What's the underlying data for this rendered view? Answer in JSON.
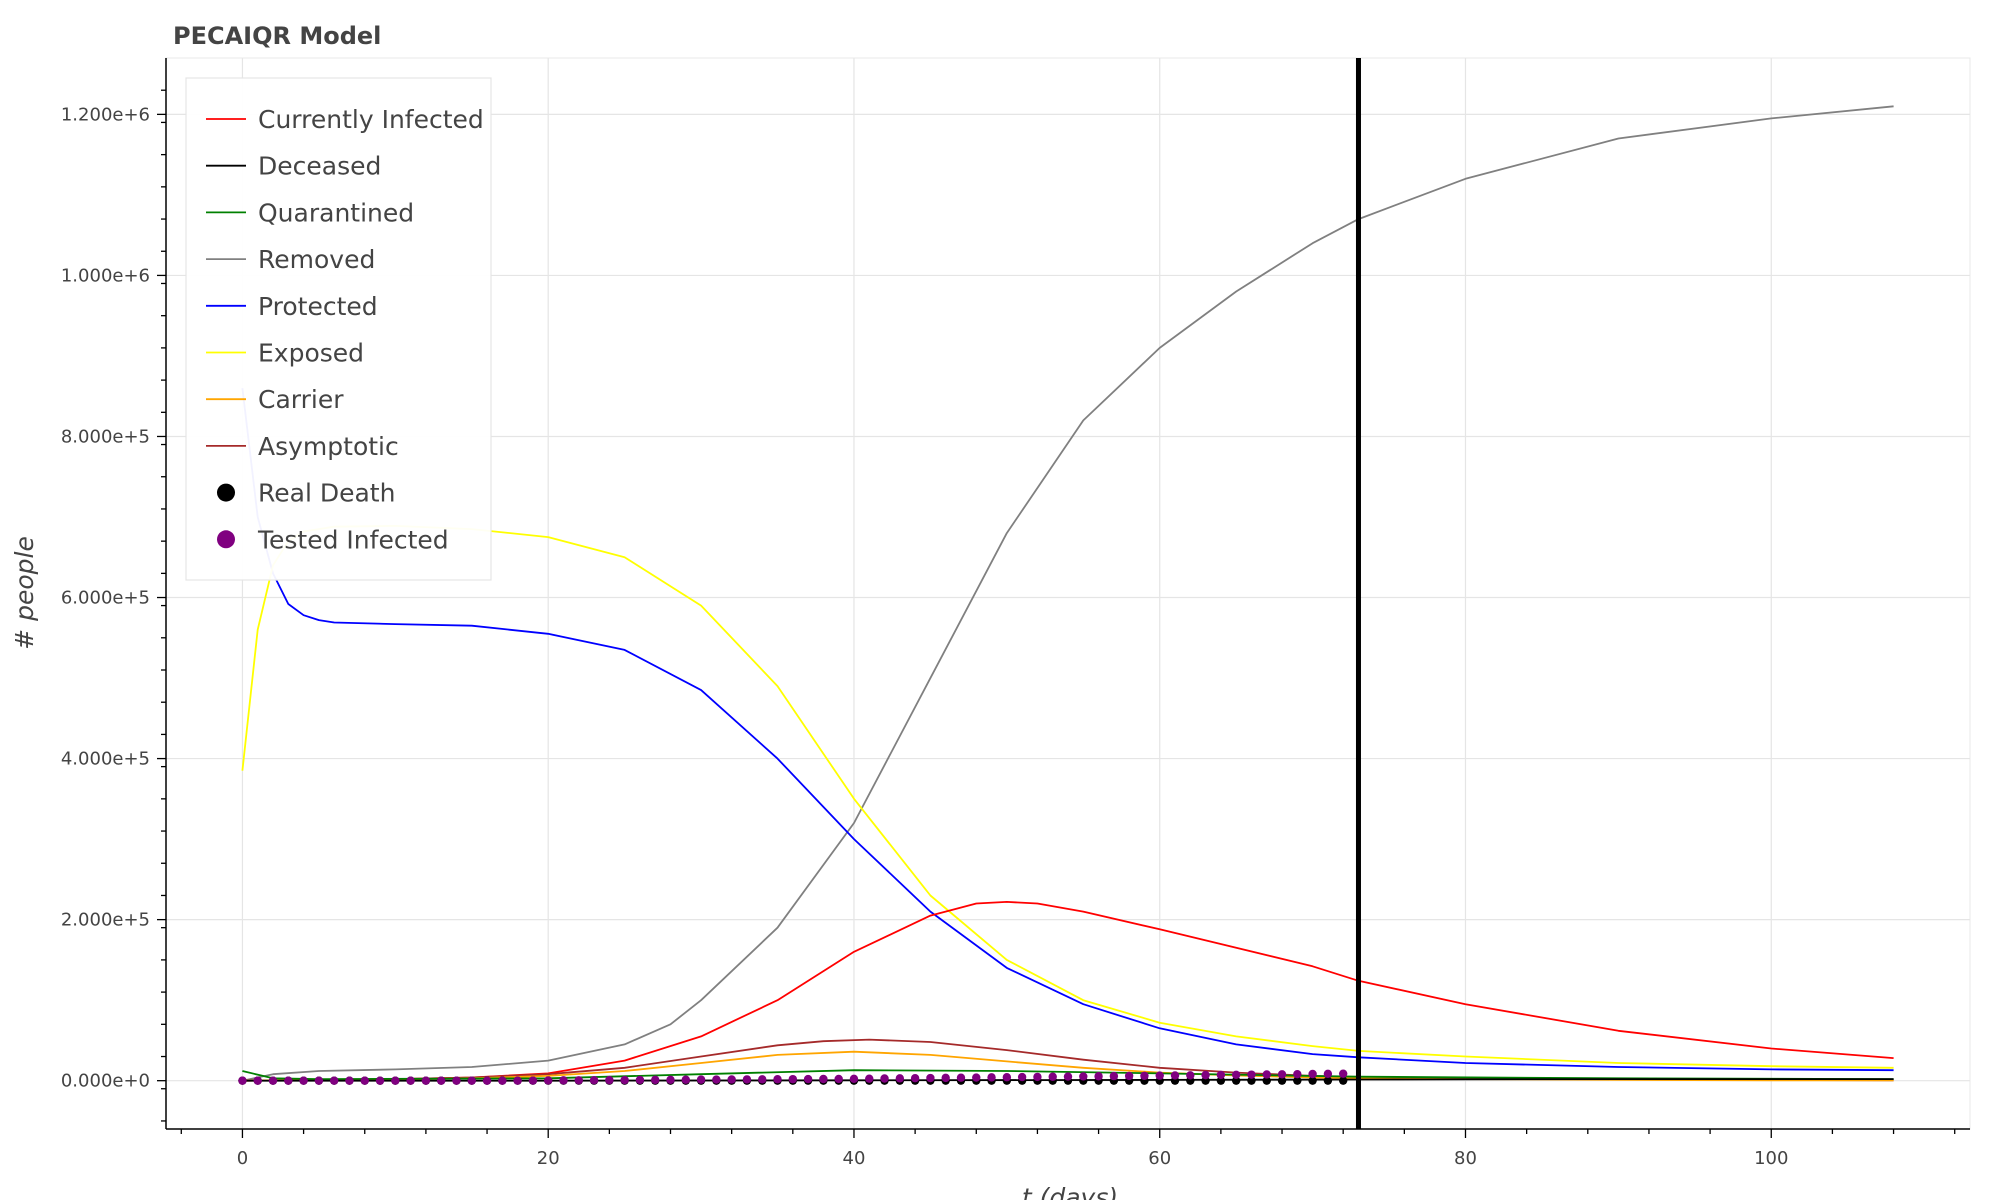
{
  "chart_data": {
    "type": "line",
    "title": "PECAIQR Model",
    "xlabel": "t (days)",
    "ylabel": "# people",
    "xlim": [
      -5,
      113
    ],
    "ylim": [
      -60000,
      1270000
    ],
    "x_major_ticks": [
      0,
      20,
      40,
      60,
      80,
      100
    ],
    "y_ticks": [
      0,
      200000,
      400000,
      600000,
      800000,
      1000000,
      1200000
    ],
    "y_tick_labels": [
      "0.000e+0",
      "2.000e+5",
      "4.000e+5",
      "6.000e+5",
      "8.000e+5",
      "1.000e+6",
      "1.200e+6"
    ],
    "grid": true,
    "legend_position": "top-left",
    "vertical_line": {
      "x": 73,
      "color": "#000000"
    },
    "series": [
      {
        "name": "Currently Infected",
        "color": "#ff0000",
        "kind": "line",
        "x": [
          0,
          5,
          10,
          15,
          20,
          25,
          30,
          35,
          40,
          45,
          48,
          50,
          52,
          55,
          60,
          65,
          70,
          73,
          80,
          90,
          100,
          108
        ],
        "y": [
          0,
          1000,
          2000,
          4000,
          9000,
          25000,
          55000,
          100000,
          160000,
          205000,
          220000,
          222000,
          220000,
          210000,
          188000,
          165000,
          142000,
          124000,
          95000,
          62000,
          40000,
          28000
        ]
      },
      {
        "name": "Deceased",
        "color": "#000000",
        "kind": "line",
        "x": [
          0,
          20,
          40,
          60,
          73,
          90,
          108
        ],
        "y": [
          0,
          0,
          500,
          1000,
          1500,
          2000,
          2000
        ]
      },
      {
        "name": "Quarantined",
        "color": "#008000",
        "kind": "line",
        "x": [
          0,
          2,
          5,
          20,
          30,
          40,
          50,
          60,
          73,
          90,
          108
        ],
        "y": [
          12000,
          3000,
          2000,
          3000,
          8000,
          13000,
          12000,
          9000,
          5000,
          3000,
          2000
        ]
      },
      {
        "name": "Removed",
        "color": "#808080",
        "kind": "line",
        "x": [
          0,
          2,
          5,
          10,
          15,
          20,
          25,
          28,
          30,
          35,
          40,
          45,
          50,
          55,
          60,
          65,
          70,
          73,
          80,
          90,
          100,
          108
        ],
        "y": [
          0,
          8000,
          12000,
          14000,
          17000,
          25000,
          45000,
          70000,
          100000,
          190000,
          320000,
          500000,
          680000,
          820000,
          910000,
          980000,
          1040000,
          1070000,
          1120000,
          1170000,
          1195000,
          1210000
        ]
      },
      {
        "name": "Protected",
        "color": "#0000ff",
        "kind": "line",
        "x": [
          0,
          1,
          2,
          3,
          4,
          5,
          6,
          10,
          15,
          20,
          25,
          30,
          35,
          40,
          45,
          50,
          55,
          60,
          65,
          70,
          73,
          80,
          90,
          100,
          108
        ],
        "y": [
          860000,
          700000,
          630000,
          592000,
          578000,
          572000,
          569000,
          567000,
          565000,
          555000,
          535000,
          485000,
          400000,
          300000,
          210000,
          140000,
          95000,
          65000,
          45000,
          33000,
          29000,
          22000,
          17000,
          14000,
          13000
        ]
      },
      {
        "name": "Exposed",
        "color": "#ffff00",
        "kind": "line",
        "x": [
          0,
          1,
          2,
          3,
          4,
          6,
          10,
          15,
          20,
          25,
          30,
          35,
          40,
          45,
          50,
          55,
          60,
          65,
          70,
          73,
          80,
          90,
          100,
          108
        ],
        "y": [
          385000,
          560000,
          640000,
          670000,
          682000,
          688000,
          689000,
          685000,
          675000,
          650000,
          590000,
          490000,
          350000,
          230000,
          150000,
          100000,
          72000,
          55000,
          43000,
          37000,
          30000,
          22000,
          18000,
          16000
        ]
      },
      {
        "name": "Carrier",
        "color": "#ffa500",
        "kind": "line",
        "x": [
          0,
          5,
          10,
          15,
          20,
          25,
          30,
          35,
          40,
          45,
          50,
          55,
          60,
          65,
          70,
          73,
          80,
          90,
          100,
          108
        ],
        "y": [
          0,
          1000,
          1500,
          3000,
          6000,
          12000,
          22000,
          32000,
          36000,
          32000,
          24000,
          16000,
          10000,
          6500,
          4000,
          3000,
          2000,
          1000,
          500,
          300
        ]
      },
      {
        "name": "Asymptotic",
        "color": "#a52a2a",
        "kind": "line",
        "x": [
          0,
          5,
          10,
          15,
          20,
          25,
          30,
          35,
          38,
          41,
          45,
          50,
          55,
          60,
          65,
          70,
          73,
          80,
          90,
          100,
          108
        ],
        "y": [
          0,
          1000,
          2000,
          4000,
          8000,
          16000,
          30000,
          44000,
          49000,
          51000,
          48000,
          38000,
          26000,
          16000,
          10000,
          6000,
          4500,
          2500,
          1500,
          800,
          500
        ]
      },
      {
        "name": "Real Death",
        "color": "#000000",
        "kind": "scatter",
        "x_start": 0,
        "x_end": 72,
        "x_step": 1,
        "y": [
          0,
          0,
          0,
          0,
          0,
          0,
          0,
          0,
          0,
          0,
          0,
          0,
          0,
          0,
          0,
          0,
          0,
          0,
          0,
          0,
          0,
          0,
          0,
          0,
          0,
          0,
          0,
          0,
          0,
          0,
          0,
          0,
          0,
          0,
          0,
          0,
          0,
          0,
          0,
          0,
          0,
          0,
          0,
          0,
          0,
          0,
          0,
          0,
          0,
          0,
          0,
          0,
          0,
          0,
          0,
          0,
          0,
          0,
          0,
          0,
          0,
          0,
          0,
          0,
          0,
          0,
          0,
          0,
          0,
          0,
          0,
          0,
          0
        ]
      },
      {
        "name": "Tested Infected",
        "color": "#800080",
        "kind": "scatter",
        "x_start": 0,
        "x_end": 72,
        "x_step": 1,
        "y": [
          0,
          0,
          0,
          0,
          0,
          0,
          0,
          0,
          0,
          0,
          0,
          0,
          0,
          0,
          0,
          0,
          0,
          0,
          100,
          200,
          300,
          400,
          500,
          600,
          700,
          800,
          900,
          1000,
          1100,
          1200,
          1300,
          1400,
          1500,
          1600,
          1700,
          1800,
          1900,
          2000,
          2100,
          2200,
          2300,
          2500,
          2700,
          2900,
          3100,
          3300,
          3500,
          3700,
          3900,
          4100,
          4300,
          4500,
          4700,
          4900,
          5100,
          5300,
          5500,
          5700,
          5900,
          6100,
          6300,
          6500,
          6700,
          6900,
          7100,
          7300,
          7500,
          7700,
          7900,
          8100,
          8300,
          8500,
          8700
        ]
      }
    ]
  }
}
